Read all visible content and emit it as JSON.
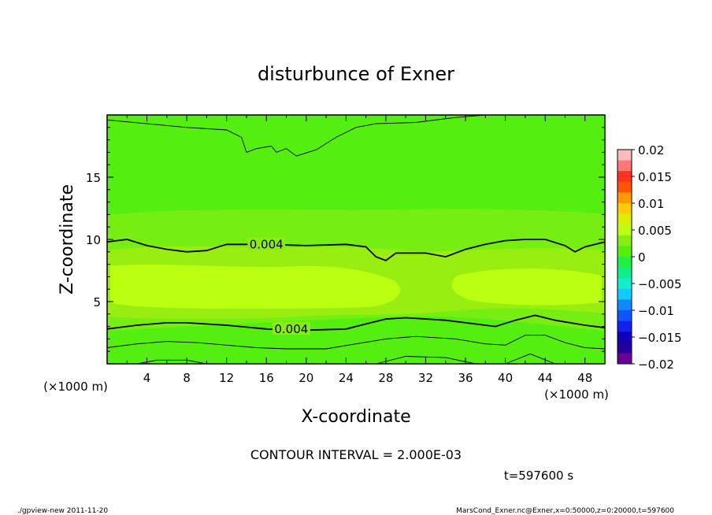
{
  "colors": {
    "band_low": "#55ee11",
    "band_mid": "#77ee11",
    "band_high": "#99ee11",
    "band_peak": "#bbff11",
    "contour": "#000000"
  },
  "chart_data": {
    "type": "contour",
    "title": "disturbunce of Exner",
    "xlabel": "X-coordinate",
    "ylabel": "Z-coordinate",
    "x_unit": "(×1000 m)",
    "xlim": [
      0,
      50
    ],
    "ylim": [
      0,
      20
    ],
    "x_ticks": [
      4,
      8,
      12,
      16,
      20,
      24,
      28,
      32,
      36,
      40,
      44,
      48
    ],
    "y_ticks": [
      5,
      10,
      15
    ],
    "contour_interval_text": "CONTOUR INTERVAL = 2.000E-03",
    "time_text": "t=597600 s",
    "contour_labels": [
      {
        "x": 16,
        "z": 9.6,
        "text": "0.004"
      },
      {
        "x": 18.5,
        "z": 2.8,
        "text": "0.004"
      }
    ],
    "colorbar": {
      "ticks": [
        "0.02",
        "0.015",
        "0.01",
        "0.005",
        "0",
        "−0.005",
        "−0.01",
        "−0.015",
        "−0.02"
      ],
      "min": -0.02,
      "max": 0.02,
      "colors": [
        "#ffbbbb",
        "#ff7777",
        "#ff3322",
        "#ff5500",
        "#ff9900",
        "#ffcc00",
        "#ddee00",
        "#bbff11",
        "#88ee11",
        "#55ee11",
        "#22ee44",
        "#11ee88",
        "#11eecc",
        "#11ccff",
        "#1188ff",
        "#1155ff",
        "#1122ee",
        "#1100bb",
        "#220099",
        "#660099"
      ]
    },
    "contours": [
      {
        "level": 0.002,
        "points": [
          [
            0,
            19.6
          ],
          [
            4,
            19.3
          ],
          [
            8,
            19.0
          ],
          [
            12,
            18.8
          ],
          [
            13.5,
            18.2
          ],
          [
            14,
            17.0
          ],
          [
            15,
            17.3
          ],
          [
            16.5,
            17.5
          ],
          [
            17,
            17.0
          ],
          [
            18,
            17.3
          ],
          [
            19,
            16.7
          ],
          [
            21,
            17.2
          ],
          [
            23,
            18.2
          ],
          [
            25,
            19.0
          ],
          [
            27,
            19.3
          ],
          [
            31,
            19.4
          ],
          [
            35,
            19.8
          ],
          [
            38,
            20.0
          ]
        ]
      },
      {
        "level": 0.004,
        "points": [
          [
            0,
            9.8
          ],
          [
            2,
            10.0
          ],
          [
            4,
            9.5
          ],
          [
            6,
            9.2
          ],
          [
            8,
            9.0
          ],
          [
            10,
            9.1
          ],
          [
            12,
            9.6
          ],
          [
            16,
            9.6
          ],
          [
            20,
            9.5
          ],
          [
            24,
            9.6
          ],
          [
            26,
            9.4
          ],
          [
            27,
            8.6
          ],
          [
            28,
            8.3
          ],
          [
            29,
            8.9
          ],
          [
            32,
            8.9
          ],
          [
            34,
            8.6
          ],
          [
            36,
            9.2
          ],
          [
            38,
            9.6
          ],
          [
            40,
            9.9
          ],
          [
            42,
            10.0
          ],
          [
            44,
            10.0
          ],
          [
            46,
            9.5
          ],
          [
            47,
            9.0
          ],
          [
            48,
            9.4
          ],
          [
            50,
            9.8
          ]
        ]
      },
      {
        "level": 0.004,
        "points": [
          [
            0,
            2.8
          ],
          [
            3,
            3.1
          ],
          [
            6,
            3.3
          ],
          [
            8,
            3.3
          ],
          [
            12,
            3.1
          ],
          [
            16,
            2.8
          ],
          [
            20,
            2.7
          ],
          [
            24,
            2.8
          ],
          [
            26,
            3.2
          ],
          [
            28,
            3.6
          ],
          [
            30,
            3.7
          ],
          [
            34,
            3.5
          ],
          [
            38,
            3.1
          ],
          [
            39,
            3.0
          ],
          [
            41,
            3.5
          ],
          [
            43,
            3.9
          ],
          [
            45,
            3.5
          ],
          [
            48,
            3.1
          ],
          [
            50,
            2.9
          ]
        ]
      },
      {
        "level": 0.002,
        "points": [
          [
            0,
            1.3
          ],
          [
            3,
            1.6
          ],
          [
            6,
            1.8
          ],
          [
            9,
            1.7
          ],
          [
            12,
            1.5
          ],
          [
            15,
            1.3
          ],
          [
            18,
            1.2
          ],
          [
            22,
            1.2
          ],
          [
            25,
            1.6
          ],
          [
            28,
            2.0
          ],
          [
            31,
            2.2
          ],
          [
            35,
            2.0
          ],
          [
            38,
            1.6
          ],
          [
            40,
            1.5
          ],
          [
            42,
            2.3
          ],
          [
            44,
            2.3
          ],
          [
            46,
            1.7
          ],
          [
            48,
            1.3
          ],
          [
            50,
            1.2
          ]
        ]
      },
      {
        "level": 0.0,
        "points": [
          [
            3,
            0
          ],
          [
            5,
            0.3
          ],
          [
            8,
            0.3
          ],
          [
            10,
            0
          ]
        ]
      },
      {
        "level": 0.0,
        "points": [
          [
            27,
            0
          ],
          [
            30,
            0.6
          ],
          [
            34,
            0.5
          ],
          [
            37,
            0
          ]
        ]
      },
      {
        "level": 0.0,
        "points": [
          [
            40,
            0
          ],
          [
            42.5,
            0.8
          ],
          [
            45,
            0
          ]
        ]
      }
    ]
  },
  "footer": {
    "left": "./gpview-new   2011-11-20",
    "right": "MarsCond_Exner.nc@Exner,x=0:50000,z=0:20000,t=597600"
  }
}
